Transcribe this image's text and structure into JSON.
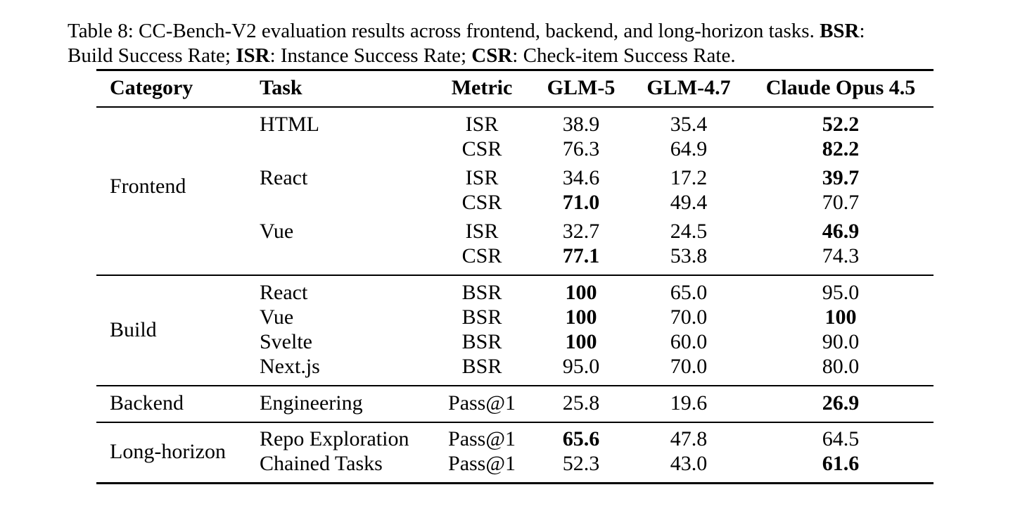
{
  "caption": {
    "prefix": "Table 8: CC-Bench-V2 evaluation results across frontend, backend, and long-horizon tasks. ",
    "bsr_abbr": "BSR",
    "bsr_def": ": ",
    "line2_a": "Build Success Rate; ",
    "isr_abbr": "ISR",
    "isr_def": ": Instance Success Rate; ",
    "csr_abbr": "CSR",
    "csr_def": ": Check-item Success Rate."
  },
  "headers": {
    "category": "Category",
    "task": "Task",
    "metric": "Metric",
    "glm5": "GLM-5",
    "glm47": "GLM-4.7",
    "opus": "Claude Opus 4.5"
  },
  "categories": {
    "frontend": "Frontend",
    "build": "Build",
    "backend": "Backend",
    "longhorizon": "Long-horizon"
  },
  "rows": [
    {
      "task": "HTML",
      "metric": "ISR",
      "glm5": "38.9",
      "glm47": "35.4",
      "opus": "52.2",
      "best": "opus"
    },
    {
      "task": "",
      "metric": "CSR",
      "glm5": "76.3",
      "glm47": "64.9",
      "opus": "82.2",
      "best": "opus"
    },
    {
      "task": "React",
      "metric": "ISR",
      "glm5": "34.6",
      "glm47": "17.2",
      "opus": "39.7",
      "best": "opus"
    },
    {
      "task": "",
      "metric": "CSR",
      "glm5": "71.0",
      "glm47": "49.4",
      "opus": "70.7",
      "best": "glm5"
    },
    {
      "task": "Vue",
      "metric": "ISR",
      "glm5": "32.7",
      "glm47": "24.5",
      "opus": "46.9",
      "best": "opus"
    },
    {
      "task": "",
      "metric": "CSR",
      "glm5": "77.1",
      "glm47": "53.8",
      "opus": "74.3",
      "best": "glm5"
    },
    {
      "task": "React",
      "metric": "BSR",
      "glm5": "100",
      "glm47": "65.0",
      "opus": "95.0",
      "best": "glm5"
    },
    {
      "task": "Vue",
      "metric": "BSR",
      "glm5": "100",
      "glm47": "70.0",
      "opus": "100",
      "best": "glm5,opus"
    },
    {
      "task": "Svelte",
      "metric": "BSR",
      "glm5": "100",
      "glm47": "60.0",
      "opus": "90.0",
      "best": "glm5"
    },
    {
      "task": "Next.js",
      "metric": "BSR",
      "glm5": "95.0",
      "glm47": "70.0",
      "opus": "80.0",
      "best": ""
    },
    {
      "task": "Engineering",
      "metric": "Pass@1",
      "glm5": "25.8",
      "glm47": "19.6",
      "opus": "26.9",
      "best": "opus"
    },
    {
      "task": "Repo Exploration",
      "metric": "Pass@1",
      "glm5": "65.6",
      "glm47": "47.8",
      "opus": "64.5",
      "best": "glm5"
    },
    {
      "task": "Chained Tasks",
      "metric": "Pass@1",
      "glm5": "52.3",
      "glm47": "43.0",
      "opus": "61.6",
      "best": "opus"
    }
  ]
}
